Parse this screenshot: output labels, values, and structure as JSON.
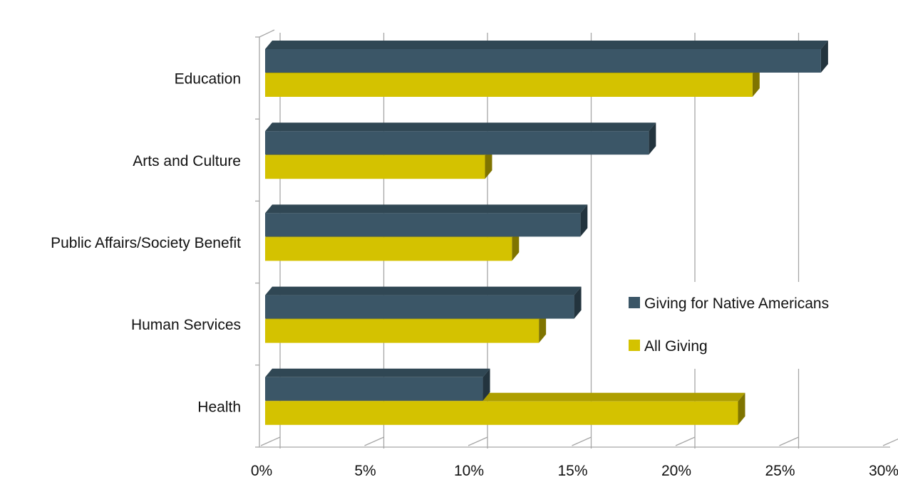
{
  "chart_data": {
    "type": "bar",
    "orientation": "horizontal",
    "style": "3d",
    "categories": [
      "Education",
      "Arts and Culture",
      "Public Affairs/Society Benefit",
      "Human Services",
      "Health"
    ],
    "series": [
      {
        "name": "Giving for Native Americans",
        "color": "#3b5667",
        "values": [
          26.8,
          18.5,
          15.2,
          14.9,
          10.5
        ]
      },
      {
        "name": "All Giving",
        "color": "#d4c200",
        "values": [
          23.5,
          10.6,
          11.9,
          13.2,
          22.8
        ]
      }
    ],
    "xlim": [
      0,
      30
    ],
    "xticks": [
      {
        "value": 0,
        "label": "0%"
      },
      {
        "value": 5,
        "label": "5%"
      },
      {
        "value": 10,
        "label": "10%"
      },
      {
        "value": 15,
        "label": "15%"
      },
      {
        "value": 20,
        "label": "20%"
      },
      {
        "value": 25,
        "label": "25%"
      },
      {
        "value": 30,
        "label": "30%"
      }
    ],
    "grid": true,
    "legend": "center-right"
  }
}
